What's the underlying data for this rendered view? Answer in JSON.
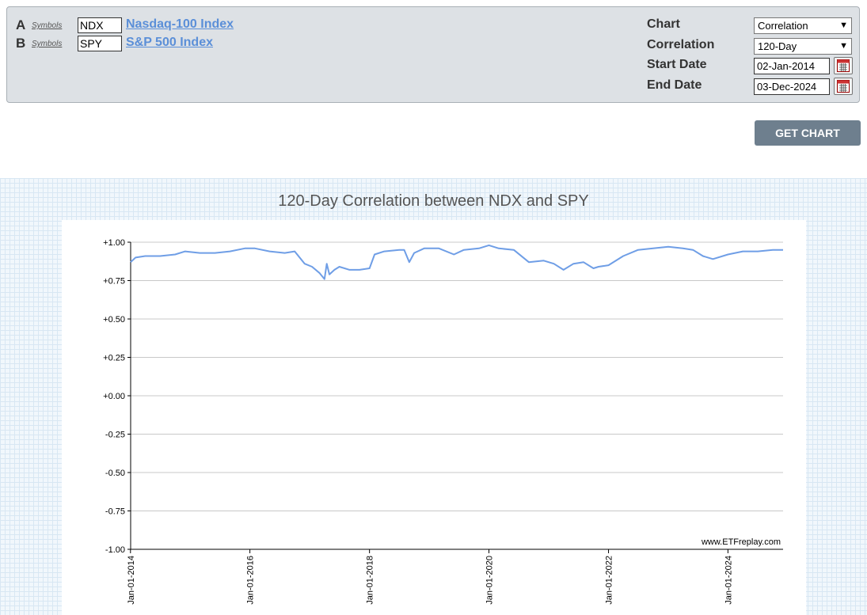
{
  "symbols": {
    "a": {
      "letter": "A",
      "link": "Symbols",
      "value": "NDX",
      "name": "Nasdaq-100 Index"
    },
    "b": {
      "letter": "B",
      "link": "Symbols",
      "value": "SPY",
      "name": "S&P 500 Index"
    }
  },
  "controls": {
    "chart": {
      "label": "Chart",
      "value": "Correlation"
    },
    "correlation": {
      "label": "Correlation",
      "value": "120-Day"
    },
    "start": {
      "label": "Start Date",
      "value": "02-Jan-2014"
    },
    "end": {
      "label": "End Date",
      "value": "03-Dec-2024"
    }
  },
  "get_chart_label": "GET CHART",
  "icons": {
    "calendar": "calendar-icon",
    "dropdown": "chevron-down-icon"
  },
  "colors": {
    "line": "#6f9ee6",
    "button": "#6e7f8e",
    "link": "#5b8fd8"
  },
  "chart_data": {
    "type": "line",
    "title": "120-Day Correlation between NDX and SPY",
    "watermark": "www.ETFreplay.com",
    "ylim": [
      -1.0,
      1.0
    ],
    "ytick_labels": [
      "+1.00",
      "+0.75",
      "+0.50",
      "+0.25",
      "+0.00",
      "-0.25",
      "-0.50",
      "-0.75",
      "-1.00"
    ],
    "xtick_labels": [
      "Jan-01-2014",
      "Jan-01-2016",
      "Jan-01-2018",
      "Jan-01-2020",
      "Jan-01-2022",
      "Jan-01-2024"
    ],
    "xlim": [
      "2014-01-02",
      "2024-12-03"
    ],
    "grid": true,
    "series": [
      {
        "x": [
          "2014-01-02",
          "2014-02-01",
          "2014-04-01",
          "2014-07-01",
          "2014-10-01",
          "2014-12-01",
          "2015-03-01",
          "2015-06-01",
          "2015-09-01",
          "2015-12-01",
          "2016-02-01",
          "2016-05-01",
          "2016-08-01",
          "2016-10-01",
          "2016-12-01",
          "2017-01-15",
          "2017-03-01",
          "2017-04-01",
          "2017-04-15",
          "2017-05-01",
          "2017-06-01",
          "2017-07-01",
          "2017-09-01",
          "2017-11-01",
          "2018-01-01",
          "2018-02-01",
          "2018-04-01",
          "2018-07-01",
          "2018-08-01",
          "2018-09-01",
          "2018-10-01",
          "2018-12-01",
          "2019-03-01",
          "2019-06-01",
          "2019-08-01",
          "2019-11-01",
          "2020-01-01",
          "2020-03-01",
          "2020-06-01",
          "2020-09-01",
          "2020-12-01",
          "2021-02-01",
          "2021-04-01",
          "2021-06-01",
          "2021-08-01",
          "2021-10-01",
          "2021-11-01",
          "2022-01-01",
          "2022-04-01",
          "2022-07-01",
          "2022-10-01",
          "2023-01-01",
          "2023-04-01",
          "2023-06-01",
          "2023-08-01",
          "2023-10-01",
          "2024-01-01",
          "2024-04-01",
          "2024-07-01",
          "2024-10-01",
          "2024-12-03"
        ],
        "y": [
          0.87,
          0.9,
          0.91,
          0.91,
          0.92,
          0.94,
          0.93,
          0.93,
          0.94,
          0.96,
          0.96,
          0.94,
          0.93,
          0.94,
          0.86,
          0.84,
          0.8,
          0.76,
          0.86,
          0.79,
          0.82,
          0.84,
          0.82,
          0.82,
          0.83,
          0.92,
          0.94,
          0.95,
          0.95,
          0.87,
          0.93,
          0.96,
          0.96,
          0.92,
          0.95,
          0.96,
          0.98,
          0.96,
          0.95,
          0.87,
          0.88,
          0.86,
          0.82,
          0.86,
          0.87,
          0.83,
          0.84,
          0.85,
          0.91,
          0.95,
          0.96,
          0.97,
          0.96,
          0.95,
          0.91,
          0.89,
          0.92,
          0.94,
          0.94,
          0.95,
          0.95
        ]
      }
    ]
  }
}
